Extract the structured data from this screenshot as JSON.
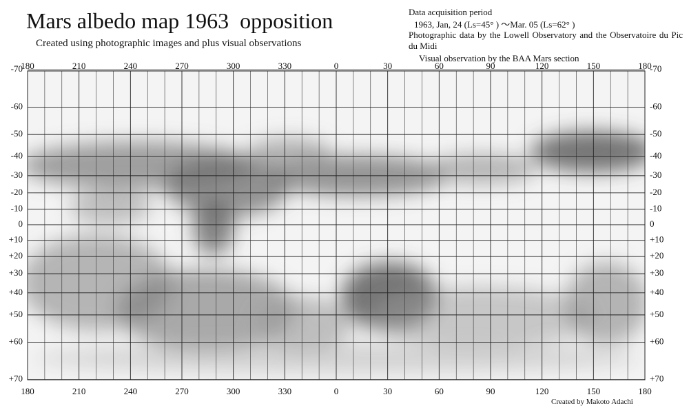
{
  "header": {
    "title": "Mars albedo map 1963  opposition",
    "subtitle": "Created using photographic images and plus visual observations"
  },
  "info": {
    "period_label": "Data acquisition period",
    "period": "1963, Jan, 24 (Ls=45° ) ～Mar. 05 (Ls=62° )",
    "photo_source": "Photographic data by the Lowell Observatory and the Observatoire du Pic du Midi",
    "visual_source": "Visual observation by the BAA Mars section"
  },
  "map": {
    "longitude_ticks": [
      180,
      210,
      240,
      270,
      300,
      330,
      0,
      30,
      60,
      90,
      120,
      150,
      180
    ],
    "latitude_ticks": [
      -70,
      -60,
      -50,
      -40,
      -30,
      -20,
      -10,
      0,
      {
        "value": 10,
        "label": "+10"
      },
      {
        "value": 20,
        "label": "+20"
      },
      {
        "value": 30,
        "label": "+30"
      },
      {
        "value": 40,
        "label": "+40"
      },
      {
        "value": 50,
        "label": "+50"
      },
      {
        "value": 60,
        "label": "+60"
      },
      {
        "value": 70,
        "label": "+70"
      }
    ]
  },
  "credit": "Created by Makoto Adachi"
}
